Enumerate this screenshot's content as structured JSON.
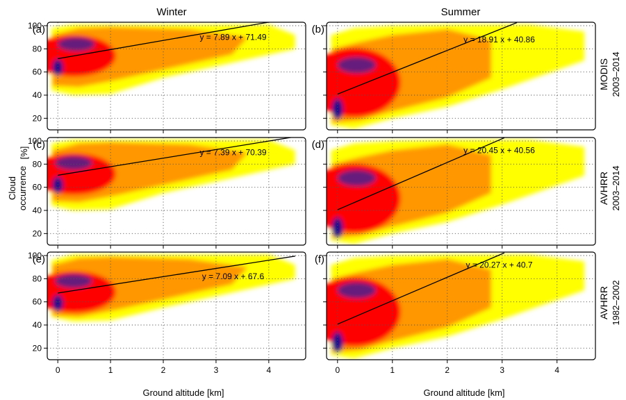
{
  "figure": {
    "column_titles": [
      "Winter",
      "Summer"
    ],
    "row_labels": [
      {
        "dataset": "MODIS",
        "period": "2003–2014"
      },
      {
        "dataset": "AVHRR",
        "period": "2003–2014"
      },
      {
        "dataset": "AVHRR",
        "period": "1982–2002"
      }
    ],
    "ylabel_line1": "Cloud",
    "ylabel_line2": "occurrence",
    "ylabel_unit": "[%]",
    "xlabel": "Ground altitude [km]"
  },
  "chart_data": [
    {
      "type": "heatmap",
      "panel": "(a)",
      "season": "Winter",
      "dataset": "MODIS",
      "period": "2003–2014",
      "xlim": [
        -0.2,
        4.7
      ],
      "ylim": [
        10,
        103
      ],
      "xticks": [
        0,
        1,
        2,
        3,
        4
      ],
      "yticks": [
        20,
        40,
        60,
        80,
        100
      ],
      "grid": "dotted",
      "fit": {
        "slope": 7.89,
        "intercept": 71.49,
        "x_range": [
          0,
          4.02
        ],
        "label": "y = 7.89 x + 71.49"
      },
      "density": {
        "core": {
          "x": 0.0,
          "y": 64
        },
        "secondary_peak": {
          "x": 0.35,
          "y": 84
        },
        "y_range_near_zero": [
          42,
          98
        ],
        "x_extent": 4.5
      }
    },
    {
      "type": "heatmap",
      "panel": "(b)",
      "season": "Summer",
      "dataset": "MODIS",
      "period": "2003–2014",
      "xlim": [
        -0.2,
        4.7
      ],
      "ylim": [
        10,
        103
      ],
      "xticks": [
        0,
        1,
        2,
        3,
        4
      ],
      "yticks": [
        20,
        40,
        60,
        80,
        100
      ],
      "grid": "dotted",
      "fit": {
        "slope": 18.91,
        "intercept": 40.86,
        "x_range": [
          0,
          3.27
        ],
        "label": "y = 18.91 x + 40.86"
      },
      "density": {
        "core": {
          "x": 0.0,
          "y": 28
        },
        "secondary_peak": {
          "x": 0.35,
          "y": 66
        },
        "y_range_near_zero": [
          12,
          92
        ],
        "x_extent": 4.5
      }
    },
    {
      "type": "heatmap",
      "panel": "(c)",
      "season": "Winter",
      "dataset": "AVHRR",
      "period": "2003–2014",
      "xlim": [
        -0.2,
        4.7
      ],
      "ylim": [
        10,
        103
      ],
      "xticks": [
        0,
        1,
        2,
        3,
        4
      ],
      "yticks": [
        20,
        40,
        60,
        80,
        100
      ],
      "grid": "dotted",
      "fit": {
        "slope": 7.39,
        "intercept": 70.39,
        "x_range": [
          0,
          4.5
        ],
        "label": "y = 7.39 x + 70.39"
      },
      "density": {
        "core": {
          "x": 0.0,
          "y": 62
        },
        "secondary_peak": {
          "x": 0.3,
          "y": 81
        },
        "y_range_near_zero": [
          42,
          98
        ],
        "x_extent": 4.5
      }
    },
    {
      "type": "heatmap",
      "panel": "(d)",
      "season": "Summer",
      "dataset": "AVHRR",
      "period": "2003–2014",
      "xlim": [
        -0.2,
        4.7
      ],
      "ylim": [
        10,
        103
      ],
      "xticks": [
        0,
        1,
        2,
        3,
        4
      ],
      "yticks": [
        20,
        40,
        60,
        80,
        100
      ],
      "grid": "dotted",
      "fit": {
        "slope": 20.45,
        "intercept": 40.56,
        "x_range": [
          0,
          3.04
        ],
        "label": "y = 20.45 x + 40.56"
      },
      "density": {
        "core": {
          "x": 0.0,
          "y": 25
        },
        "secondary_peak": {
          "x": 0.35,
          "y": 68
        },
        "y_range_near_zero": [
          12,
          92
        ],
        "x_extent": 4.5
      }
    },
    {
      "type": "heatmap",
      "panel": "(e)",
      "season": "Winter",
      "dataset": "AVHRR",
      "period": "1982–2002",
      "xlim": [
        -0.2,
        4.7
      ],
      "ylim": [
        10,
        103
      ],
      "xticks": [
        0,
        1,
        2,
        3,
        4
      ],
      "yticks": [
        20,
        40,
        60,
        80,
        100
      ],
      "grid": "dotted",
      "fit": {
        "slope": 7.09,
        "intercept": 67.6,
        "x_range": [
          0,
          4.5
        ],
        "label": "y = 7.09 x + 67.6"
      },
      "density": {
        "core": {
          "x": 0.0,
          "y": 59
        },
        "secondary_peak": {
          "x": 0.3,
          "y": 78
        },
        "y_range_near_zero": [
          45,
          96
        ],
        "x_extent": 4.5
      }
    },
    {
      "type": "heatmap",
      "panel": "(f)",
      "season": "Summer",
      "dataset": "AVHRR",
      "period": "1982–2002",
      "xlim": [
        -0.2,
        4.7
      ],
      "ylim": [
        10,
        103
      ],
      "xticks": [
        0,
        1,
        2,
        3,
        4
      ],
      "yticks": [
        20,
        40,
        60,
        80,
        100
      ],
      "grid": "dotted",
      "fit": {
        "slope": 20.27,
        "intercept": 40.7,
        "x_range": [
          0,
          3.04
        ],
        "label": "y = 20.27 x + 40.7"
      },
      "density": {
        "core": {
          "x": 0.0,
          "y": 25
        },
        "secondary_peak": {
          "x": 0.35,
          "y": 70
        },
        "y_range_near_zero": [
          12,
          92
        ],
        "x_extent": 4.5
      }
    }
  ],
  "colors": {
    "density_scale": [
      "#ffffff",
      "#ffff00",
      "#ff8c00",
      "#ff0000",
      "#cc0033",
      "#552288",
      "#0a0a8c"
    ],
    "fit_line": "#000000",
    "grid": "#555555"
  }
}
